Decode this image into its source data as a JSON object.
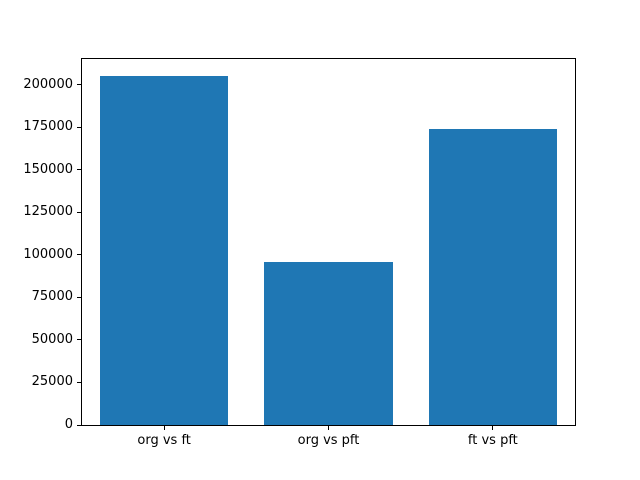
{
  "figure": {
    "background": "#ffffff",
    "spine_color": "#000000",
    "text_color": "#000000"
  },
  "chart_data": {
    "type": "bar",
    "title": "",
    "xlabel": "",
    "ylabel": "",
    "categories": [
      "org vs ft",
      "org vs pft",
      "ft vs pft"
    ],
    "values": [
      205000,
      95600,
      174000
    ],
    "bar_color": "#1f77b4",
    "yticks": [
      0,
      25000,
      50000,
      75000,
      100000,
      125000,
      150000,
      175000,
      200000
    ],
    "ytick_labels": [
      "0",
      "25000",
      "50000",
      "75000",
      "100000",
      "125000",
      "150000",
      "175000",
      "200000"
    ],
    "ylim": [
      0,
      215200
    ],
    "grid": false,
    "legend": null
  }
}
